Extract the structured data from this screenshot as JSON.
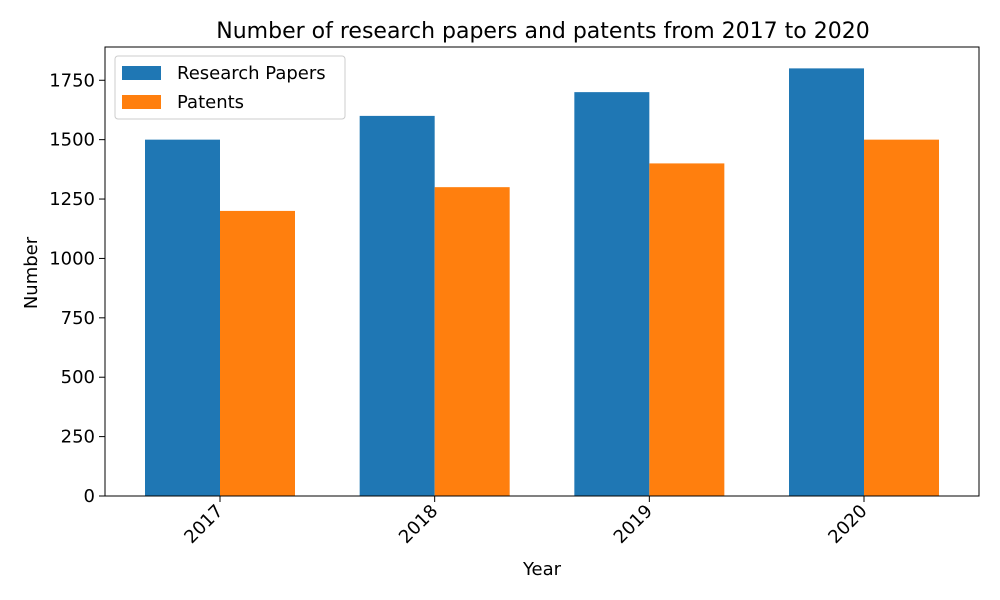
{
  "chart_data": {
    "type": "bar",
    "title": "Number of research papers and patents from 2017 to 2020",
    "xlabel": "Year",
    "ylabel": "Number",
    "categories": [
      "2017",
      "2018",
      "2019",
      "2020"
    ],
    "series": [
      {
        "name": "Research Papers",
        "values": [
          1500,
          1600,
          1700,
          1800
        ],
        "color": "#1f77b4"
      },
      {
        "name": "Patents",
        "values": [
          1200,
          1300,
          1400,
          1500
        ],
        "color": "#ff7f0e"
      }
    ],
    "ylim": [
      0,
      1890
    ],
    "yticks": [
      0,
      250,
      500,
      750,
      1000,
      1250,
      1500,
      1750
    ],
    "ytick_labels": [
      "0",
      "250",
      "500",
      "750",
      "1000",
      "1250",
      "1500",
      "1750"
    ],
    "grid": false,
    "legend_position": "top-left"
  }
}
